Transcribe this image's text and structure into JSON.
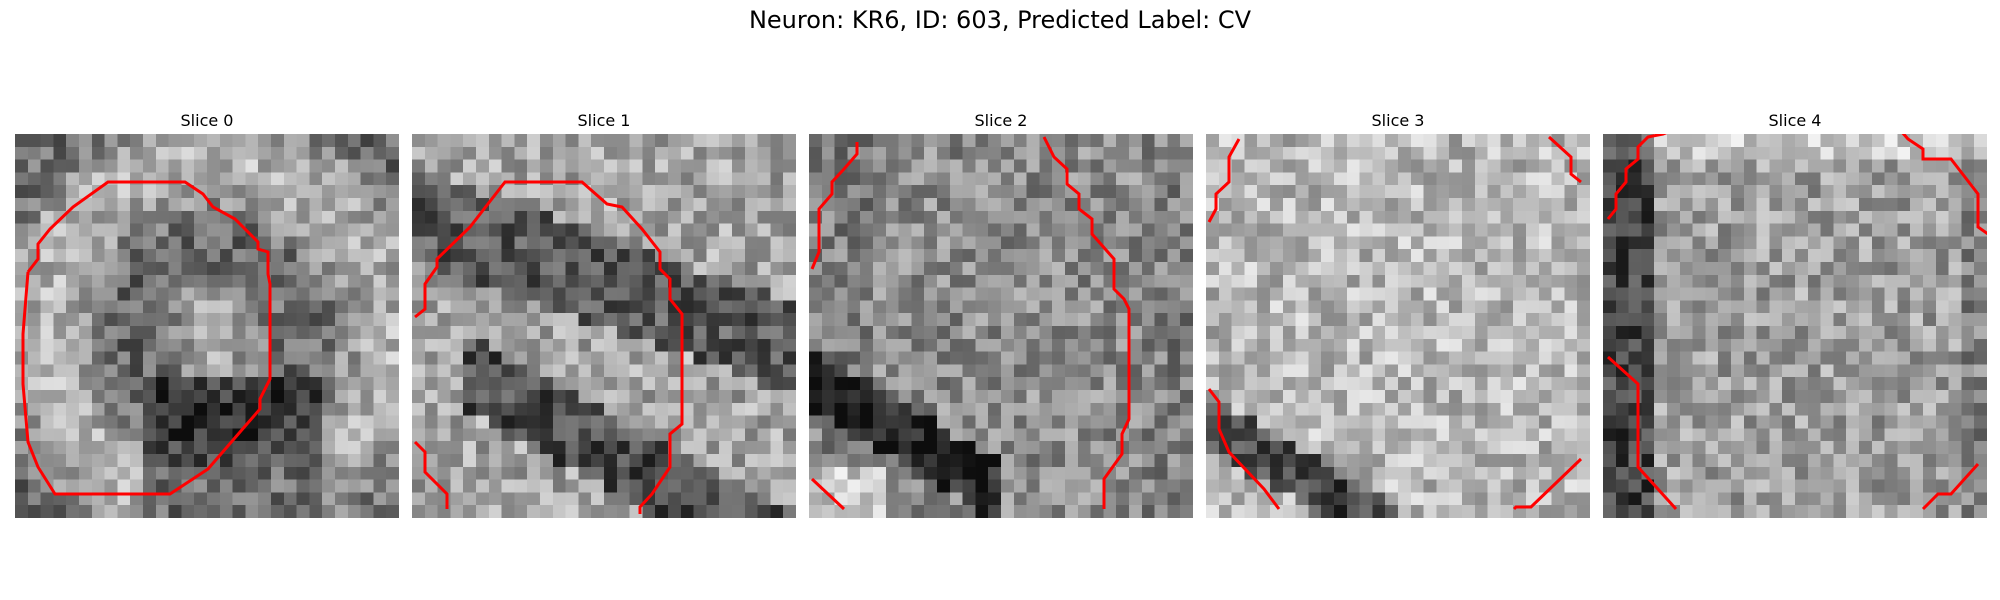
{
  "figure": {
    "title": "Neuron: KR6, ID: 603, Predicted Label: CV"
  },
  "panels": [
    {
      "title": "Slice 0",
      "seed": 11,
      "pattern": "ring-dark-bottom"
    },
    {
      "title": "Slice 1",
      "seed": 23,
      "pattern": "diagonal-dark"
    },
    {
      "title": "Slice 2",
      "seed": 37,
      "pattern": "dark-corner-bottom-left"
    },
    {
      "title": "Slice 3",
      "seed": 41,
      "pattern": "light-center"
    },
    {
      "title": "Slice 4",
      "seed": 53,
      "pattern": "dark-left-edge"
    }
  ],
  "colors": {
    "contour": "#ff0000",
    "background": "#ffffff"
  }
}
